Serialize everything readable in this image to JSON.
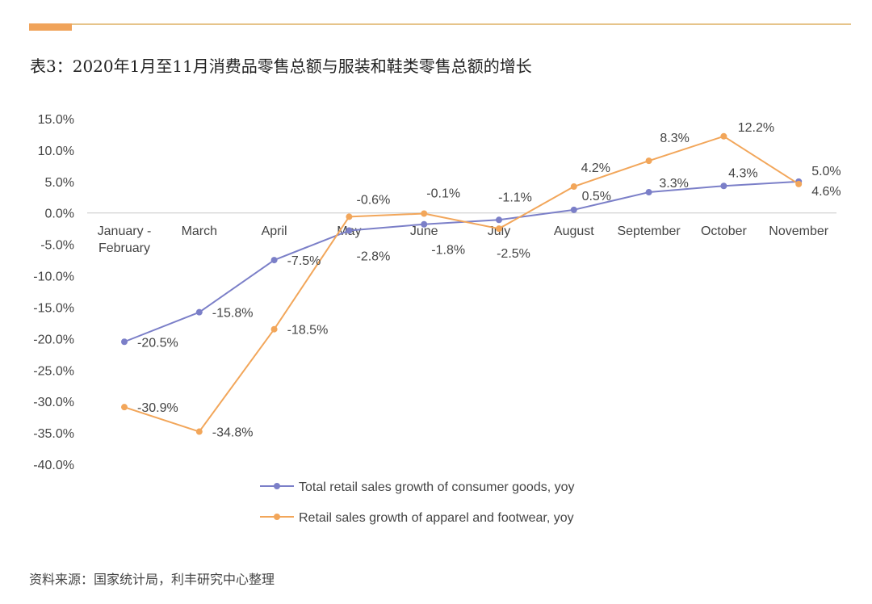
{
  "header": {
    "title": "表3：2020年1月至11月消费品零售总额与服装和鞋类零售总额的增长"
  },
  "footer": {
    "source": "资料来源：国家统计局，利丰研究中心整理"
  },
  "colors": {
    "accent": "#f0a35a",
    "rule": "#e6c48a",
    "series_total": "#7b7fc8",
    "series_apparel": "#f2a65a"
  },
  "chart_data": {
    "type": "line",
    "title": "",
    "xlabel": "",
    "ylabel": "",
    "ylim": [
      -40,
      15
    ],
    "yticks": [
      "15.0%",
      "10.0%",
      "5.0%",
      "0.0%",
      "-5.0%",
      "-10.0%",
      "-15.0%",
      "-20.0%",
      "-25.0%",
      "-30.0%",
      "-35.0%",
      "-40.0%"
    ],
    "categories": [
      [
        "January -",
        "February"
      ],
      [
        "March"
      ],
      [
        "April"
      ],
      [
        "May"
      ],
      [
        "June"
      ],
      [
        "July"
      ],
      [
        "August"
      ],
      [
        "September"
      ],
      [
        "October"
      ],
      [
        "November"
      ]
    ],
    "series": [
      {
        "name": "Total retail sales growth of consumer goods, yoy",
        "values": [
          -20.5,
          -15.8,
          -7.5,
          -2.8,
          -1.8,
          -1.1,
          0.5,
          3.3,
          4.3,
          5.0
        ],
        "labels": [
          "-20.5%",
          "-15.8%",
          "-7.5%",
          "-2.8%",
          "-1.8%",
          "-1.1%",
          "0.5%",
          "3.3%",
          "4.3%",
          "5.0%"
        ]
      },
      {
        "name": "Retail sales growth of apparel and footwear, yoy",
        "values": [
          -30.9,
          -34.8,
          -18.5,
          -0.6,
          -0.1,
          -2.5,
          4.2,
          8.3,
          12.2,
          4.6
        ],
        "labels": [
          "-30.9%",
          "-34.8%",
          "-18.5%",
          "-0.6%",
          "-0.1%",
          "-2.5%",
          "4.2%",
          "8.3%",
          "12.2%",
          "4.6%"
        ]
      }
    ],
    "legend": "bottom-center"
  }
}
